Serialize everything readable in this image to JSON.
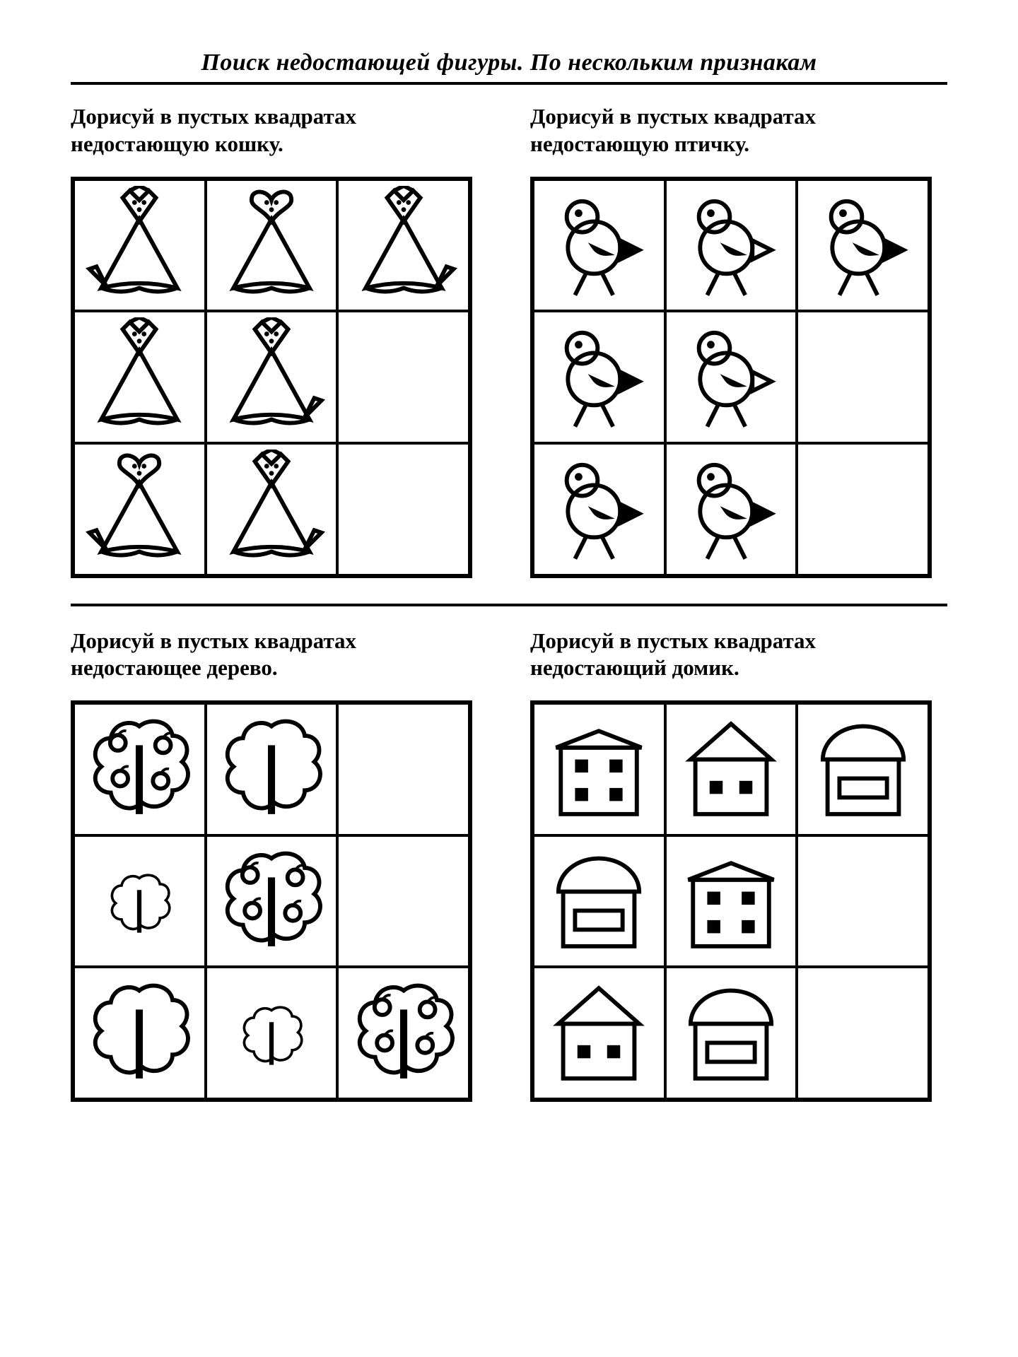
{
  "title": "Поиск недостающей фигуры. По нескольким признакам",
  "q1": {
    "prompt": "Дорисуй в пустых квадратах недостающую кошку.",
    "grid": [
      {
        "face": "diamond",
        "tail": "left"
      },
      {
        "face": "heart",
        "tail": "none"
      },
      {
        "face": "diamond",
        "tail": "right"
      },
      {
        "face": "diamond",
        "tail": "none"
      },
      {
        "face": "diamond",
        "tail": "right"
      },
      null,
      {
        "face": "heart",
        "tail": "left"
      },
      {
        "face": "diamond",
        "tail": "right"
      },
      null
    ]
  },
  "q2": {
    "prompt": "Дорисуй в пустых квадратах недостающую птичку.",
    "grid": [
      {
        "wing": "black",
        "beak": "black"
      },
      {
        "wing": "white",
        "beak": "white"
      },
      {
        "wing": "white",
        "beak": "black"
      },
      {
        "wing": "white",
        "beak": "black"
      },
      {
        "wing": "white",
        "beak": "white"
      },
      null,
      {
        "wing": "black",
        "beak": "black"
      },
      {
        "wing": "white",
        "beak": "black"
      },
      null
    ]
  },
  "q3": {
    "prompt": "Дорисуй в пустых квадратах недостающее дерево.",
    "grid": [
      {
        "size": "big",
        "apples": true
      },
      {
        "size": "big",
        "apples": false
      },
      null,
      {
        "size": "small",
        "apples": false
      },
      {
        "size": "big",
        "apples": true
      },
      null,
      {
        "size": "big",
        "apples": false
      },
      {
        "size": "small",
        "apples": false
      },
      {
        "size": "big",
        "apples": true
      }
    ]
  },
  "q4": {
    "prompt": "Дорисуй в пустых квадратах недостающий домик.",
    "grid": [
      {
        "roof": "flat",
        "win": "four"
      },
      {
        "roof": "tri",
        "win": "two"
      },
      {
        "roof": "dome",
        "win": "rect"
      },
      {
        "roof": "dome",
        "win": "rect"
      },
      {
        "roof": "flat",
        "win": "four"
      },
      null,
      {
        "roof": "tri",
        "win": "two"
      },
      {
        "roof": "dome",
        "win": "rect"
      },
      null
    ]
  },
  "style": {
    "stroke": "#000000",
    "fill_black": "#000000",
    "bg": "#ffffff",
    "stroke_w": 3.5
  }
}
